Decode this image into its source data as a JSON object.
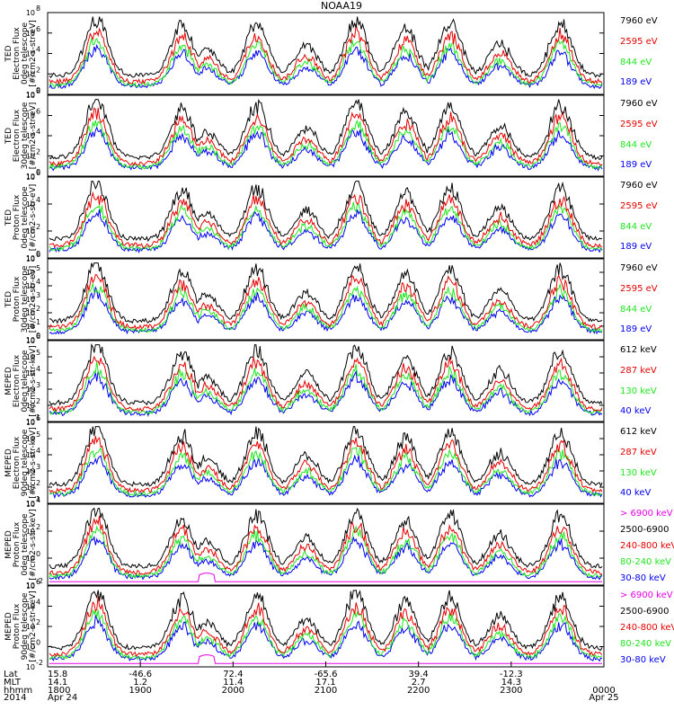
{
  "title": "NOAA19",
  "colors": {
    "black": "#000000",
    "red": "#e60000",
    "green": "#1ee61e",
    "blue": "#0000f0",
    "magenta": "#e600e6"
  },
  "chart_data": {
    "type": "line",
    "x_time_range": [
      "2014-04-24 18:00",
      "2014-04-25 00:00"
    ],
    "grid": false,
    "legend_placement": "right",
    "panels": [
      {
        "ylabel": [
          "TED",
          "Electron Flux",
          "0deg telescope",
          "[#/cm2-s-str-eV]"
        ],
        "yticks": [
          {
            "label": "10",
            "exp": "0"
          },
          {
            "label": "10",
            "exp": "2"
          },
          {
            "label": "10",
            "exp": "4"
          },
          {
            "label": "10",
            "exp": "6"
          },
          {
            "label": "10",
            "exp": "8"
          }
        ],
        "legend": [
          {
            "name": "7960 eV",
            "color": "#000000"
          },
          {
            "name": "2595 eV",
            "color": "#e60000"
          },
          {
            "name": "844 eV",
            "color": "#1ee61e"
          },
          {
            "name": "189 eV",
            "color": "#0000f0"
          }
        ]
      },
      {
        "ylabel": [
          "TED",
          "Electron Flux",
          "30deg telescope",
          "[#/cm2-s-str-eV]"
        ],
        "yticks": [
          {
            "label": "10",
            "exp": "0"
          },
          {
            "label": "10",
            "exp": "2"
          },
          {
            "label": "10",
            "exp": "4"
          },
          {
            "label": "10",
            "exp": "6"
          },
          {
            "label": "10",
            "exp": "8"
          }
        ],
        "legend": [
          {
            "name": "7960 eV",
            "color": "#000000"
          },
          {
            "name": "2595 eV",
            "color": "#e60000"
          },
          {
            "name": "844 eV",
            "color": "#1ee61e"
          },
          {
            "name": "189 eV",
            "color": "#0000f0"
          }
        ]
      },
      {
        "ylabel": [
          "TED",
          "Proton Flux",
          "0deg telescope",
          "[#/cm2-s-str-eV]"
        ],
        "yticks": [
          {
            "label": "10",
            "exp": "0"
          },
          {
            "label": "10",
            "exp": "2"
          },
          {
            "label": "10",
            "exp": "4"
          },
          {
            "label": "10",
            "exp": "6"
          }
        ],
        "legend": [
          {
            "name": "7960 eV",
            "color": "#000000"
          },
          {
            "name": "2595 eV",
            "color": "#e60000"
          },
          {
            "name": "844 eV",
            "color": "#1ee61e"
          },
          {
            "name": "189 eV",
            "color": "#0000f0"
          }
        ]
      },
      {
        "ylabel": [
          "TED",
          "Proton Flux",
          "30deg telescope",
          "[#/cm2-s-str-eV]"
        ],
        "yticks": [
          {
            "label": "10",
            "exp": "0"
          },
          {
            "label": "10",
            "exp": "1"
          },
          {
            "label": "10",
            "exp": "2"
          },
          {
            "label": "10",
            "exp": "3"
          },
          {
            "label": "10",
            "exp": "4"
          },
          {
            "label": "10",
            "exp": "5"
          },
          {
            "label": "10",
            "exp": "6"
          }
        ],
        "legend": [
          {
            "name": "7960 eV",
            "color": "#000000"
          },
          {
            "name": "2595 eV",
            "color": "#e60000"
          },
          {
            "name": "844 eV",
            "color": "#1ee61e"
          },
          {
            "name": "189 eV",
            "color": "#0000f0"
          }
        ]
      },
      {
        "ylabel": [
          "MEPED",
          "Electron Flux",
          "0deg telescope",
          "[#/cm2-s-str-keV]"
        ],
        "yticks": [
          {
            "label": "10",
            "exp": "1"
          },
          {
            "label": "10",
            "exp": "2"
          },
          {
            "label": "10",
            "exp": "3"
          },
          {
            "label": "10",
            "exp": "4"
          },
          {
            "label": "10",
            "exp": "5"
          },
          {
            "label": "10",
            "exp": "6"
          }
        ],
        "legend": [
          {
            "name": "612 keV",
            "color": "#000000"
          },
          {
            "name": "287 keV",
            "color": "#e60000"
          },
          {
            "name": "130 keV",
            "color": "#1ee61e"
          },
          {
            "name": "40 keV",
            "color": "#0000f0"
          }
        ]
      },
      {
        "ylabel": [
          "MEPED",
          "Electron Flux",
          "90deg telescope",
          "[#/cm2-s-str-keV]"
        ],
        "yticks": [
          {
            "label": "10",
            "exp": "1"
          },
          {
            "label": "10",
            "exp": "2"
          },
          {
            "label": "10",
            "exp": "3"
          },
          {
            "label": "10",
            "exp": "4"
          },
          {
            "label": "10",
            "exp": "5"
          },
          {
            "label": "10",
            "exp": "6"
          }
        ],
        "legend": [
          {
            "name": "612 keV",
            "color": "#000000"
          },
          {
            "name": "287 keV",
            "color": "#e60000"
          },
          {
            "name": "130 keV",
            "color": "#1ee61e"
          },
          {
            "name": "40 keV",
            "color": "#0000f0"
          }
        ]
      },
      {
        "ylabel": [
          "MEPED",
          "Proton Flux",
          "0deg telescope",
          "[#/cm2-s-str-keV]"
        ],
        "yticks": [
          {
            "label": "10",
            "exp": "-2"
          },
          {
            "label": "10",
            "exp": "0"
          },
          {
            "label": "10",
            "exp": "2"
          },
          {
            "label": "10",
            "exp": "4"
          }
        ],
        "legend": [
          {
            "name": "> 6900 keV",
            "color": "#e600e6"
          },
          {
            "name": "2500-6900",
            "color": "#000000"
          },
          {
            "name": "240-800 keV",
            "color": "#e60000"
          },
          {
            "name": "80-240 keV",
            "color": "#1ee61e"
          },
          {
            "name": "30-80 keV",
            "color": "#0000f0"
          }
        ]
      },
      {
        "ylabel": [
          "MEPED",
          "Proton Flux",
          "90deg telescope",
          "[#/cm2-s-str-keV]"
        ],
        "yticks": [
          {
            "label": "10",
            "exp": "-2"
          },
          {
            "label": "10",
            "exp": "0"
          },
          {
            "label": "10",
            "exp": "2"
          },
          {
            "label": "10",
            "exp": "4"
          },
          {
            "label": "10",
            "exp": "6"
          }
        ],
        "legend": [
          {
            "name": "> 6900 keV",
            "color": "#e600e6"
          },
          {
            "name": "2500-6900",
            "color": "#000000"
          },
          {
            "name": "240-800 keV",
            "color": "#e60000"
          },
          {
            "name": "80-240 keV",
            "color": "#1ee61e"
          },
          {
            "name": "30-80 keV",
            "color": "#0000f0"
          }
        ]
      }
    ],
    "xaxis": {
      "row_labels": [
        "Lat",
        "MLT",
        "hhmm",
        "2014"
      ],
      "columns": [
        {
          "lat": "15.8",
          "mlt": "14.1",
          "hhmm": "1800",
          "date": "Apr 24"
        },
        {
          "lat": "-46.6",
          "mlt": "1.2",
          "hhmm": "1900",
          "date": ""
        },
        {
          "lat": "72.4",
          "mlt": "11.4",
          "hhmm": "2000",
          "date": ""
        },
        {
          "lat": "-65.6",
          "mlt": "17.1",
          "hhmm": "2100",
          "date": ""
        },
        {
          "lat": "39.4",
          "mlt": "2.7",
          "hhmm": "2200",
          "date": ""
        },
        {
          "lat": "-12.3",
          "mlt": "14.3",
          "hhmm": "2300",
          "date": ""
        },
        {
          "lat": "",
          "mlt": "",
          "hhmm": "0000",
          "date": "Apr 25"
        }
      ]
    }
  }
}
